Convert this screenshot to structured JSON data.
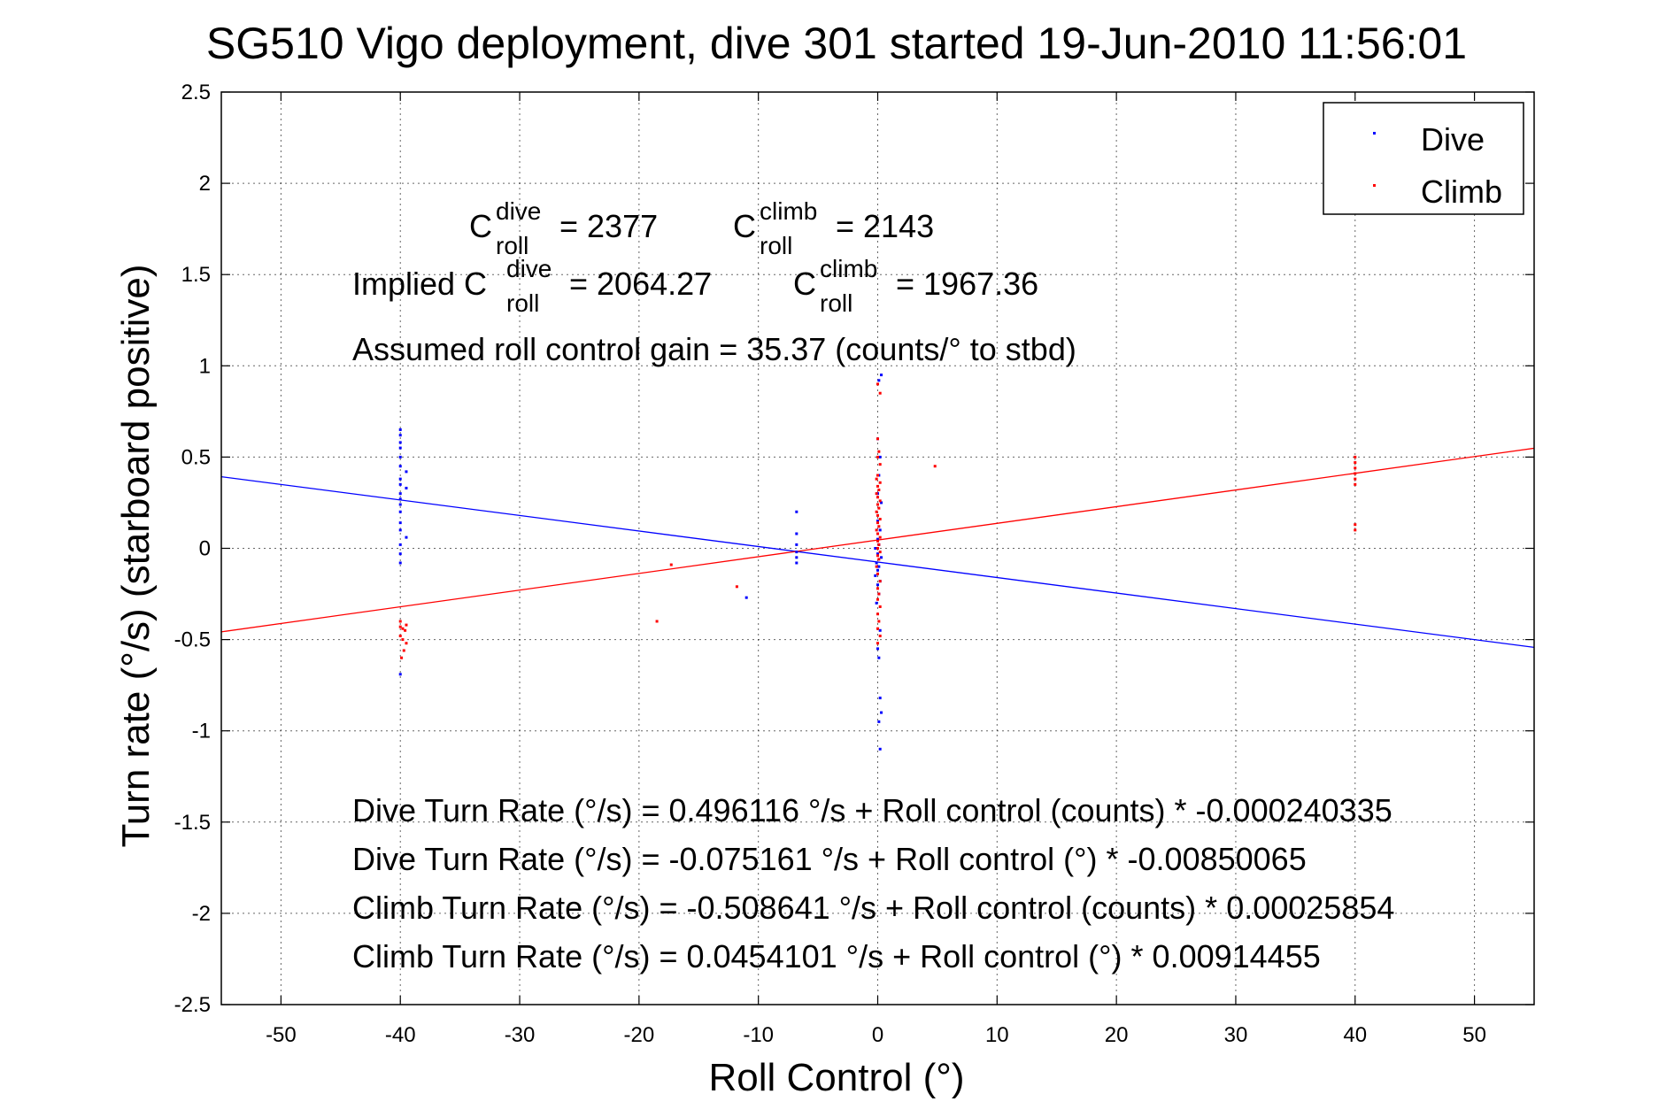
{
  "chart_data": {
    "type": "scatter",
    "title": "SG510 Vigo deployment, dive 301 started 19-Jun-2010 11:56:01",
    "xlabel": "Roll Control (°)",
    "ylabel": "Turn rate (°/s)  (starboard positive)",
    "xlim": [
      -55,
      55
    ],
    "ylim": [
      -2.5,
      2.5
    ],
    "x_ticks": [
      "-50",
      "-40",
      "-30",
      "-20",
      "-10",
      "0",
      "10",
      "20",
      "30",
      "40",
      "50"
    ],
    "y_ticks": [
      "2.5",
      "2",
      "1.5",
      "1",
      "0.5",
      "0",
      "-0.5",
      "-1",
      "-1.5",
      "-2",
      "-2.5"
    ],
    "grid": true,
    "legend_position": "top-right",
    "legend": [
      {
        "label": "Dive",
        "color": "#0000ff"
      },
      {
        "label": "Climb",
        "color": "#ff0000"
      }
    ],
    "series": [
      {
        "name": "Dive",
        "color": "#0000ff",
        "points": [
          [
            -40,
            0.65
          ],
          [
            -40,
            0.62
          ],
          [
            -40,
            0.58
          ],
          [
            -40,
            0.55
          ],
          [
            -40,
            0.5
          ],
          [
            -40,
            0.45
          ],
          [
            -39.5,
            0.42
          ],
          [
            -40,
            0.38
          ],
          [
            -40,
            0.35
          ],
          [
            -39.5,
            0.33
          ],
          [
            -40,
            0.3
          ],
          [
            -40,
            0.27
          ],
          [
            -40,
            0.24
          ],
          [
            -40,
            0.2
          ],
          [
            -40,
            0.14
          ],
          [
            -40,
            0.1
          ],
          [
            -39.5,
            0.06
          ],
          [
            -40,
            0.02
          ],
          [
            -40,
            -0.03
          ],
          [
            -40,
            -0.08
          ],
          [
            -40,
            -0.69
          ],
          [
            -6.8,
            0.2
          ],
          [
            -6.8,
            0.08
          ],
          [
            -6.8,
            0.02
          ],
          [
            -6.8,
            -0.02
          ],
          [
            -6.8,
            -0.05
          ],
          [
            -6.8,
            -0.08
          ],
          [
            -11,
            -0.27
          ],
          [
            0.3,
            0.95
          ],
          [
            0.1,
            0.92
          ],
          [
            0,
            0.6
          ],
          [
            0.2,
            0.5
          ],
          [
            0.1,
            0.4
          ],
          [
            0,
            0.3
          ],
          [
            0.3,
            0.25
          ],
          [
            0,
            0.15
          ],
          [
            0.2,
            0.1
          ],
          [
            0,
            0.05
          ],
          [
            0.1,
            0.02
          ],
          [
            -0.2,
            0
          ],
          [
            0,
            -0.03
          ],
          [
            0.3,
            -0.05
          ],
          [
            -0.1,
            -0.08
          ],
          [
            0.1,
            -0.1
          ],
          [
            0,
            -0.12
          ],
          [
            -0.2,
            -0.15
          ],
          [
            0.2,
            -0.18
          ],
          [
            0,
            -0.2
          ],
          [
            0.1,
            -0.25
          ],
          [
            -0.1,
            -0.3
          ],
          [
            0.2,
            -0.45
          ],
          [
            0,
            -0.55
          ],
          [
            0.1,
            -0.6
          ],
          [
            0.2,
            -0.82
          ],
          [
            0.3,
            -0.9
          ],
          [
            0.1,
            -0.95
          ],
          [
            0.2,
            -1.1
          ]
        ]
      },
      {
        "name": "Climb",
        "color": "#ff0000",
        "points": [
          [
            -40,
            -0.4
          ],
          [
            -39.5,
            -0.42
          ],
          [
            -40,
            -0.43
          ],
          [
            -39.8,
            -0.44
          ],
          [
            -39.6,
            -0.45
          ],
          [
            -40,
            -0.48
          ],
          [
            -39.8,
            -0.5
          ],
          [
            -39.5,
            -0.52
          ],
          [
            -39.7,
            -0.56
          ],
          [
            -39.9,
            -0.6
          ],
          [
            40,
            0.5
          ],
          [
            40,
            0.47
          ],
          [
            40,
            0.44
          ],
          [
            40,
            0.41
          ],
          [
            40,
            0.38
          ],
          [
            40,
            0.35
          ],
          [
            40,
            0.13
          ],
          [
            40,
            0.1
          ],
          [
            -18.5,
            -0.4
          ],
          [
            -17.3,
            -0.09
          ],
          [
            -11.8,
            -0.21
          ],
          [
            4.8,
            0.45
          ],
          [
            0,
            0.9
          ],
          [
            0.2,
            0.85
          ],
          [
            0,
            0.6
          ],
          [
            0.1,
            0.53
          ],
          [
            0,
            0.5
          ],
          [
            0.2,
            0.46
          ],
          [
            0,
            0.4
          ],
          [
            -0.1,
            0.38
          ],
          [
            0.2,
            0.36
          ],
          [
            0,
            0.34
          ],
          [
            0.1,
            0.32
          ],
          [
            -0.1,
            0.3
          ],
          [
            0,
            0.28
          ],
          [
            0.2,
            0.26
          ],
          [
            0,
            0.24
          ],
          [
            0.1,
            0.22
          ],
          [
            -0.1,
            0.2
          ],
          [
            0,
            0.18
          ],
          [
            0.2,
            0.16
          ],
          [
            0,
            0.14
          ],
          [
            0.1,
            0.12
          ],
          [
            -0.1,
            0.1
          ],
          [
            0,
            0.08
          ],
          [
            0.2,
            0.06
          ],
          [
            0,
            0.04
          ],
          [
            0.1,
            0.02
          ],
          [
            0,
            0
          ],
          [
            0.2,
            -0.02
          ],
          [
            0,
            -0.04
          ],
          [
            0.1,
            -0.06
          ],
          [
            -0.1,
            -0.1
          ],
          [
            0,
            -0.14
          ],
          [
            0.2,
            -0.18
          ],
          [
            0,
            -0.22
          ],
          [
            0.1,
            -0.25
          ],
          [
            0,
            -0.28
          ],
          [
            0.2,
            -0.32
          ],
          [
            0,
            -0.36
          ],
          [
            0.1,
            -0.4
          ],
          [
            0,
            -0.44
          ],
          [
            0.2,
            -0.48
          ],
          [
            0,
            -0.52
          ]
        ]
      }
    ],
    "fit_lines": [
      {
        "name": "Dive fit",
        "color": "#0000ff",
        "intercept": -0.075161,
        "slope": -0.00850065
      },
      {
        "name": "Climb fit",
        "color": "#ff0000",
        "intercept": 0.0454101,
        "slope": 0.00914455
      }
    ],
    "annotations": {
      "c_roll_dive": "= 2377",
      "c_roll_climb": "= 2143",
      "implied_prefix": "Implied C",
      "implied_dive": "= 2064.27",
      "implied_climb": "= 1967.36",
      "c_letter": "C",
      "sup_dive": "dive",
      "sup_climb": "climb",
      "sub_roll": "roll",
      "gain": "Assumed roll control gain = 35.37 (counts/° to stbd)",
      "eq1": "Dive Turn Rate (°/s) = 0.496116 °/s + Roll control (counts) * -0.000240335",
      "eq2": "Dive Turn Rate (°/s) = -0.075161 °/s + Roll control (°) * -0.00850065",
      "eq3": "Climb Turn Rate (°/s) = -0.508641 °/s + Roll control (counts) * 0.00025854",
      "eq4": "Climb Turn Rate (°/s) = 0.0454101 °/s + Roll control (°) * 0.00914455"
    }
  }
}
